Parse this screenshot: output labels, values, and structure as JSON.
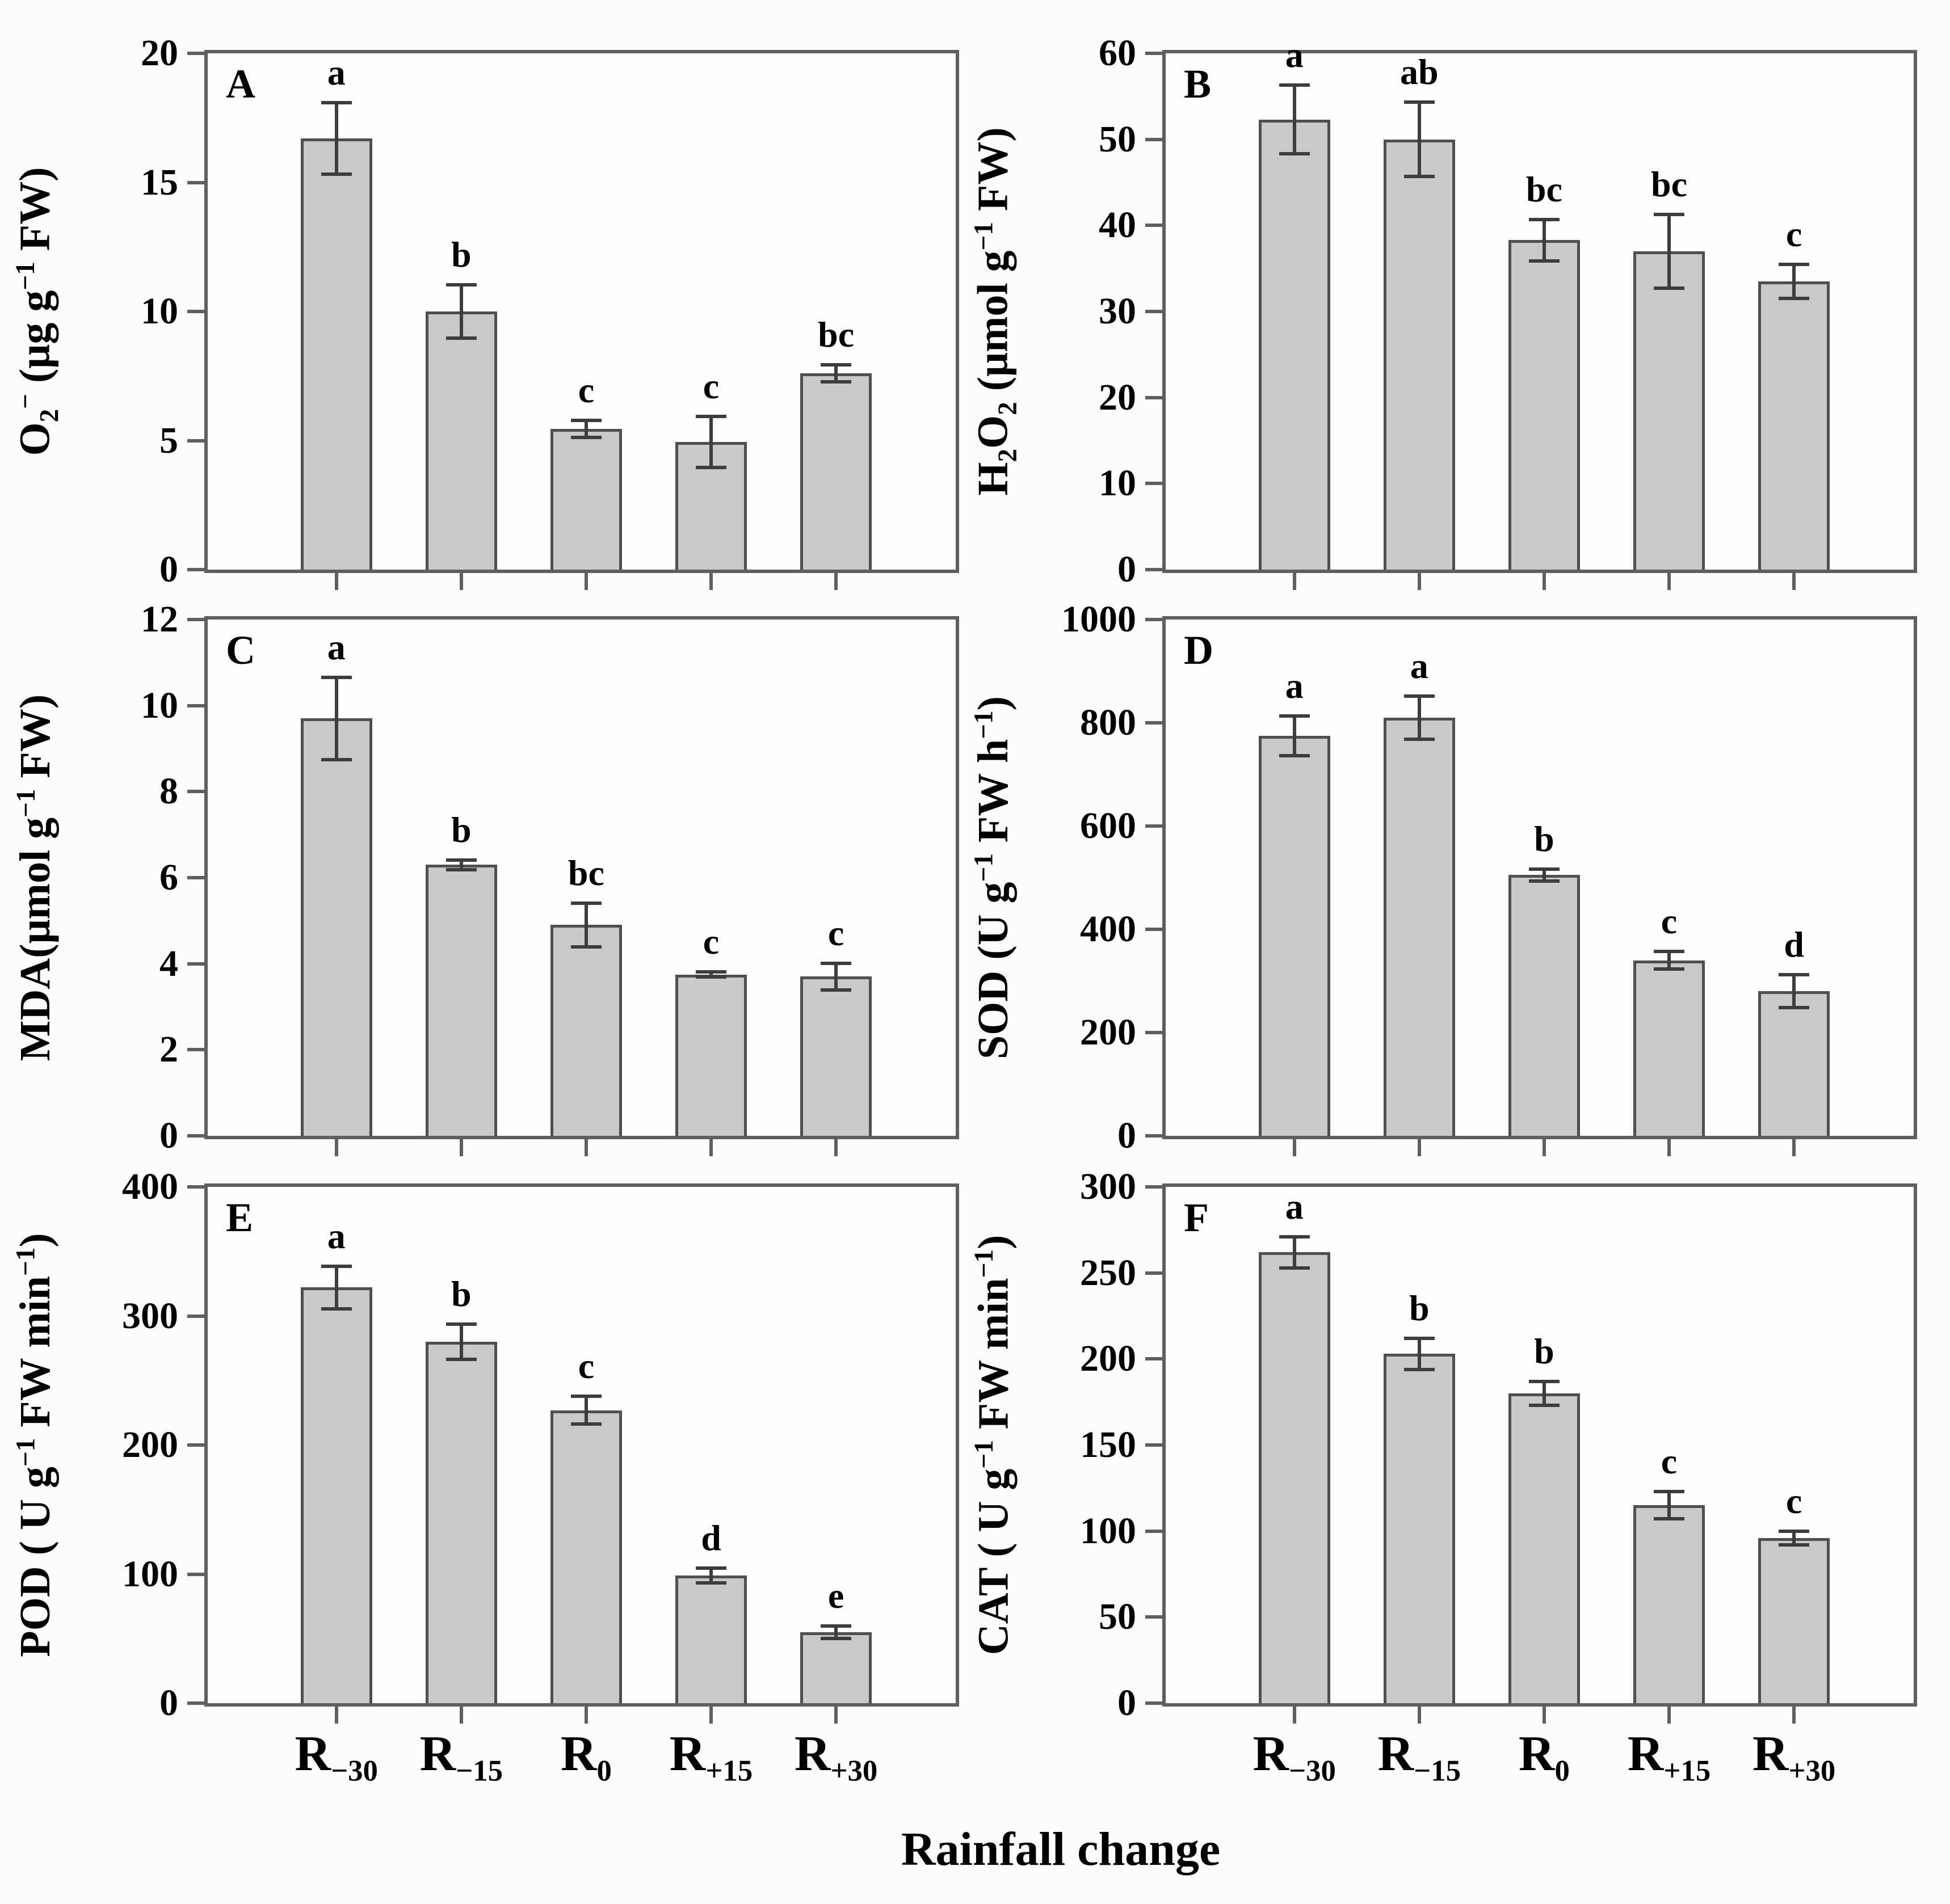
{
  "colors": {
    "bar_fill": "#c9c9c9",
    "bar_border": "#4f4f4f",
    "axis": "#5f5f5f",
    "error_bar": "#3d3d3d",
    "text": "#000000",
    "background": "#fcfcfa"
  },
  "chart_data": {
    "type": "bar",
    "xlabel": "Rainfall change",
    "legend": "none",
    "grid": false,
    "categories_html": [
      "R<sub>−30</sub>",
      "R<sub>−15</sub>",
      "R<sub>0</sub>",
      "R<sub>+15</sub>",
      "R<sub>+30</sub>"
    ],
    "categories_text": [
      "R-30",
      "R-15",
      "R0",
      "R+15",
      "R+30"
    ],
    "panels": [
      {
        "panel_label": "A",
        "ylabel_html": "O<sub>2</sub><sup>−</sup> (μg g<sup>−1</sup> FW)",
        "ylabel_text": "O2- (ug g-1 FW)",
        "ylim": [
          0,
          20
        ],
        "yticks": [
          0,
          5,
          10,
          15,
          20
        ],
        "values": [
          16.7,
          10.0,
          5.45,
          4.95,
          7.6
        ],
        "errors": [
          1.45,
          1.1,
          0.4,
          1.05,
          0.4
        ],
        "sig_letters": [
          "a",
          "b",
          "c",
          "c",
          "bc"
        ]
      },
      {
        "panel_label": "B",
        "ylabel_html": "H<sub>2</sub>O<sub>2</sub> (μmol g<sup>−1</sup> FW)",
        "ylabel_text": "H2O2 (umol g-1 FW)",
        "ylim": [
          0,
          60
        ],
        "yticks": [
          0,
          10,
          20,
          30,
          40,
          50,
          60
        ],
        "values": [
          52.3,
          50.0,
          38.3,
          37.0,
          33.5
        ],
        "errors": [
          4.2,
          4.5,
          2.6,
          4.5,
          2.2
        ],
        "sig_letters": [
          "a",
          "ab",
          "bc",
          "bc",
          "c"
        ]
      },
      {
        "panel_label": "C",
        "ylabel_html": "MDA(μmol g<sup>−1</sup> FW)",
        "ylabel_text": "MDA (umol g-1 FW)",
        "ylim": [
          0,
          12
        ],
        "yticks": [
          0,
          2,
          4,
          6,
          8,
          10,
          12
        ],
        "values": [
          9.7,
          6.3,
          4.9,
          3.75,
          3.7
        ],
        "errors": [
          1.0,
          0.15,
          0.55,
          0.1,
          0.35
        ],
        "sig_letters": [
          "a",
          "b",
          "bc",
          "c",
          "c"
        ]
      },
      {
        "panel_label": "D",
        "ylabel_html": "SOD (U g<sup>−1</sup> FW h<sup>−1</sup>)",
        "ylabel_text": "SOD (U g-1 FW h-1)",
        "ylim": [
          0,
          1000
        ],
        "yticks": [
          0,
          200,
          400,
          600,
          800,
          1000
        ],
        "values": [
          775,
          810,
          505,
          340,
          280
        ],
        "errors": [
          42,
          45,
          15,
          20,
          35
        ],
        "sig_letters": [
          "a",
          "a",
          "b",
          "c",
          "d"
        ]
      },
      {
        "panel_label": "E",
        "ylabel_html": "POD ( U g<sup>−1</sup> FW min<sup>−1</sup>)",
        "ylabel_text": "POD ( U g-1 FW min-1)",
        "ylim": [
          0,
          400
        ],
        "yticks": [
          0,
          100,
          200,
          300,
          400
        ],
        "values": [
          322,
          280,
          227,
          99,
          55
        ],
        "errors": [
          18,
          15,
          12,
          7,
          6
        ],
        "sig_letters": [
          "a",
          "b",
          "c",
          "d",
          "e"
        ]
      },
      {
        "panel_label": "F",
        "ylabel_html": "CAT ( U g<sup>−1</sup> FW min<sup>−1</sup>)",
        "ylabel_text": "CAT ( U g-1 FW min-1)",
        "ylim": [
          0,
          300
        ],
        "yticks": [
          0,
          50,
          100,
          150,
          200,
          250,
          300
        ],
        "values": [
          262,
          203,
          180,
          115,
          96
        ],
        "errors": [
          10,
          10,
          8,
          9,
          5
        ],
        "sig_letters": [
          "a",
          "b",
          "b",
          "c",
          "c"
        ]
      }
    ]
  }
}
